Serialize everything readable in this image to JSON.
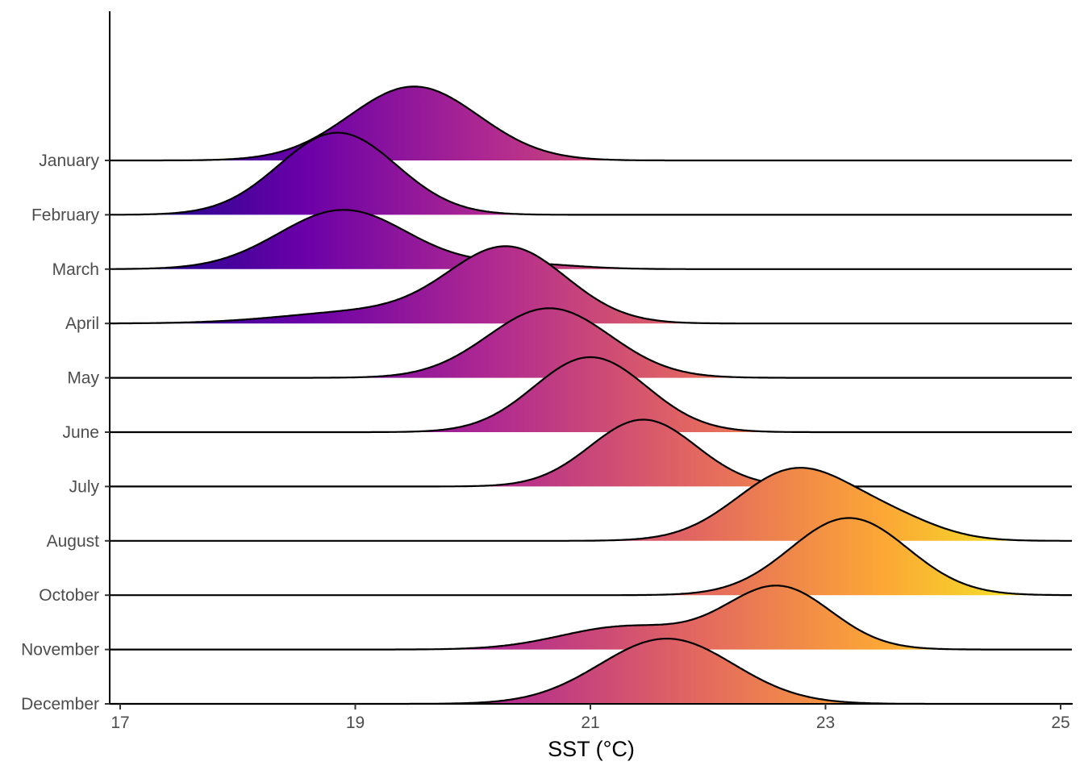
{
  "chart_data": {
    "type": "ridgeline",
    "xlabel": "SST (°C)",
    "ylabel": "",
    "xlim": [
      17,
      25
    ],
    "x_ticks": [
      "17",
      "19",
      "21",
      "23",
      "25"
    ],
    "categories": [
      "January",
      "February",
      "March",
      "April",
      "May",
      "June",
      "July",
      "August",
      "October",
      "November",
      "December"
    ],
    "series": [
      {
        "month": "January",
        "components": [
          {
            "mean": 19.5,
            "sd": 0.55,
            "height": 1.36
          }
        ]
      },
      {
        "month": "February",
        "components": [
          {
            "mean": 18.85,
            "sd": 0.5,
            "height": 1.51
          }
        ]
      },
      {
        "month": "March",
        "components": [
          {
            "mean": 18.9,
            "sd": 0.55,
            "height": 1.09
          },
          {
            "mean": 20.4,
            "sd": 0.45,
            "height": 0.1
          }
        ]
      },
      {
        "month": "April",
        "components": [
          {
            "mean": 20.3,
            "sd": 0.5,
            "height": 1.37
          },
          {
            "mean": 19.1,
            "sd": 0.7,
            "height": 0.22
          }
        ]
      },
      {
        "month": "May",
        "components": [
          {
            "mean": 20.65,
            "sd": 0.52,
            "height": 1.28
          }
        ]
      },
      {
        "month": "June",
        "components": [
          {
            "mean": 21.0,
            "sd": 0.48,
            "height": 1.38
          }
        ]
      },
      {
        "month": "July",
        "components": [
          {
            "mean": 21.45,
            "sd": 0.45,
            "height": 1.23
          }
        ]
      },
      {
        "month": "August",
        "components": [
          {
            "mean": 22.75,
            "sd": 0.5,
            "height": 1.31
          },
          {
            "mean": 23.6,
            "sd": 0.4,
            "height": 0.3
          }
        ]
      },
      {
        "month": "October",
        "components": [
          {
            "mean": 23.2,
            "sd": 0.5,
            "height": 1.42
          }
        ]
      },
      {
        "month": "November",
        "components": [
          {
            "mean": 22.6,
            "sd": 0.45,
            "height": 1.15
          },
          {
            "mean": 21.3,
            "sd": 0.55,
            "height": 0.42
          }
        ]
      },
      {
        "month": "December",
        "components": [
          {
            "mean": 21.65,
            "sd": 0.57,
            "height": 1.2
          }
        ]
      }
    ],
    "colormap": [
      "#0d0887",
      "#6a00a8",
      "#b12a90",
      "#e16462",
      "#fca636",
      "#f0f921"
    ],
    "line_color": "#000000",
    "grid": false,
    "legend": "none"
  }
}
